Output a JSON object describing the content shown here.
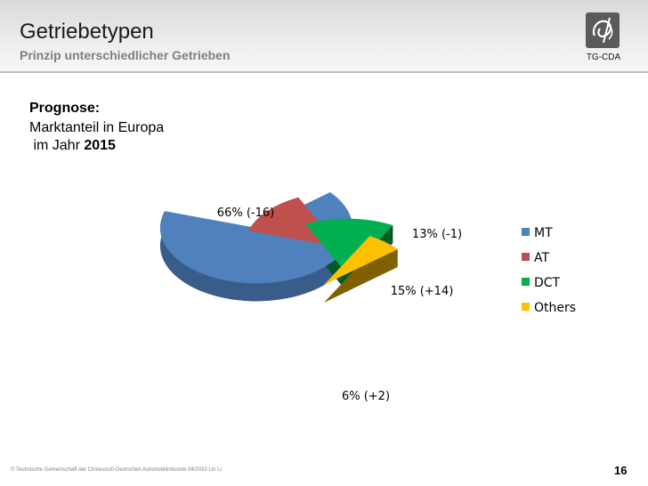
{
  "header": {
    "title": "Getriebetypen",
    "subtitle": "Prinzip unterschiedlicher Getrieben",
    "logo_label": "TG-CDA"
  },
  "prognose": {
    "heading": "Prognose:",
    "line1": "Marktanteil in Europa",
    "line2_prefix": " im Jahr ",
    "line2_year": "2015"
  },
  "chart_data": {
    "type": "pie",
    "style": "3d-exploded",
    "legend_position": "right",
    "slices": [
      {
        "label": "MT",
        "value": 66,
        "change": -16,
        "data_label": "66% (-16)",
        "color": "#4f81bd",
        "side_color": "#385d8a"
      },
      {
        "label": "AT",
        "value": 13,
        "change": -1,
        "data_label": "13% (-1)",
        "color": "#c0504d",
        "side_color": "#632523"
      },
      {
        "label": "DCT",
        "value": 15,
        "change": 14,
        "data_label": "15% (+14)",
        "color": "#00b050",
        "side_color": "#005a28"
      },
      {
        "label": "Others",
        "value": 6,
        "change": 2,
        "data_label": "6% (+2)",
        "color": "#ffc000",
        "side_color": "#7f6000"
      }
    ]
  },
  "footer": {
    "text": "© Technische Gemeinschaft der Chinesisch-Deutschen Automobilindustrie 04/2010 Lin Li",
    "page_number": "16"
  }
}
